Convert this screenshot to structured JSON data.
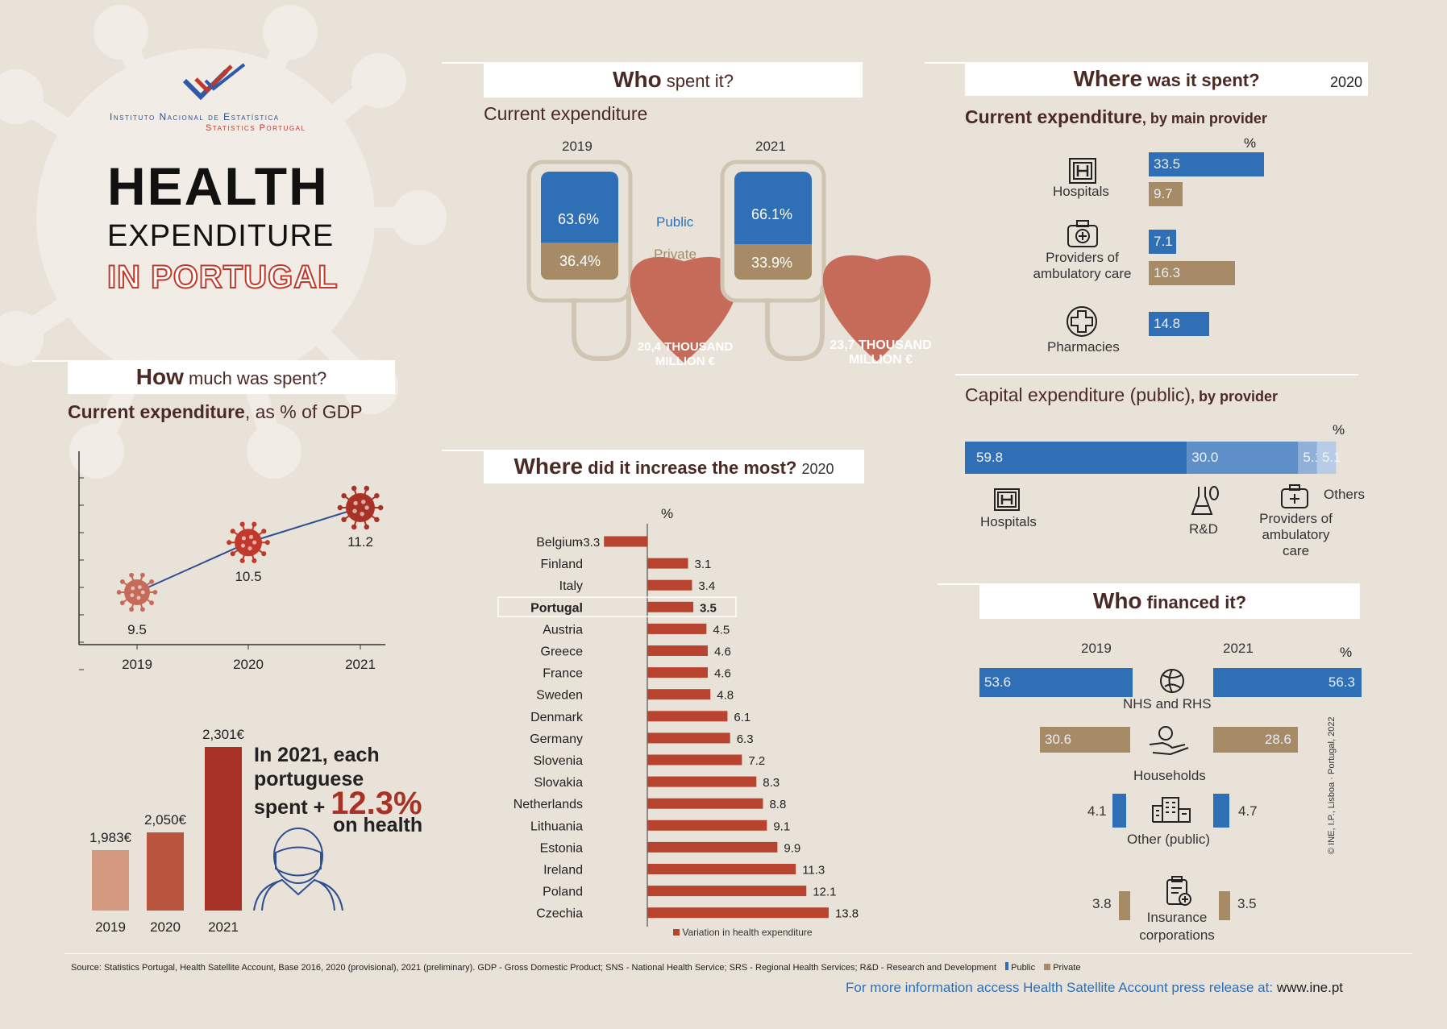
{
  "logo": {
    "name": "Instituto Nacional de Estatística",
    "subname": "Statistics Portugal"
  },
  "headline": {
    "line1": "HEALTH",
    "line2": "EXPENDITURE",
    "line3": "IN PORTUGAL"
  },
  "colors": {
    "public": "#2f6fb5",
    "private": "#a68b66",
    "accent": "#a93226",
    "title": "#4a2a24"
  },
  "how_much": {
    "title_bold": "How",
    "title_rest": "much was spent?",
    "subtitle_bold": "Current expenditure",
    "subtitle_rest": ", as % of GDP"
  },
  "per_capita": {
    "text1": "In 2021, each",
    "text2": "portuguese",
    "text3": "spent +",
    "pct": "12.3%",
    "text4": "on health"
  },
  "who_spent": {
    "title_bold": "Who",
    "title_rest": "spent it?",
    "subtitle": "Current expenditure",
    "legend_public": "Public",
    "legend_private": "Private",
    "bags": [
      {
        "year": "2019",
        "public": "63.6%",
        "private": "36.4%",
        "total_line1": "20,4 THOUSAND",
        "total_line2": "MILLION €"
      },
      {
        "year": "2021",
        "public": "66.1%",
        "private": "33.9%",
        "total_line1": "23,7 THOUSAND",
        "total_line2": "MILLION €"
      }
    ]
  },
  "where_increase": {
    "title_bold": "Where",
    "title_rest": "did it increase the most?",
    "year": "2020",
    "unit": "%",
    "legend": "Variation in health expenditure"
  },
  "where_spent": {
    "title_bold": "Where",
    "title_rest": "was it spent?",
    "year": "2020",
    "subtitle_bold": "Current expenditure",
    "subtitle_rest": ", by main provider",
    "unit": "%",
    "providers": [
      {
        "name": "Hospitals",
        "public": "33.5",
        "private": "9.7"
      },
      {
        "name1": "Providers of",
        "name2": "ambulatory care",
        "public": "7.1",
        "private": "16.3"
      },
      {
        "name": "Pharmacies",
        "private": "14.8"
      }
    ]
  },
  "capital": {
    "title_bold": "Capital expenditure (public)",
    "title_rest": ", by provider",
    "unit": "%",
    "labels": {
      "hospitals": "Hospitals",
      "rd": "R&D",
      "amb1": "Providers of",
      "amb2": "ambulatory",
      "amb3": "care",
      "others": "Others"
    }
  },
  "financed": {
    "title_bold": "Who",
    "title_rest": "financed it?",
    "year_left": "2019",
    "year_right": "2021",
    "unit": "%",
    "rows": [
      {
        "label": "NHS and RHS",
        "v2019": "53.6",
        "v2021": "56.3"
      },
      {
        "label": "Households",
        "v2019": "30.6",
        "v2021": "28.6"
      },
      {
        "label": "Other (public)",
        "v2019": "4.1",
        "v2021": "4.7"
      },
      {
        "label1": "Insurance",
        "label2": "corporations",
        "v2019": "3.8",
        "v2021": "3.5"
      }
    ]
  },
  "copyright": "© INE, I.P., Lisboa · Portugal, 2022",
  "footer": {
    "source": "Source: Statistics Portugal, Health Satellite Account, Base 2016, 2020 (provisional), 2021 (preliminary). GDP - Gross Domestic Product; SNS - National Health Service; SRS - Regional Health Services; R&D - Research and Development",
    "legend_public": "Public",
    "legend_private": "Private",
    "more_info": "For more information access Health Satellite Account press release at:",
    "url": "www.ine.pt"
  },
  "chart_data": [
    {
      "type": "line",
      "title": "Current expenditure, as % of GDP",
      "x": [
        "2019",
        "2020",
        "2021"
      ],
      "series": [
        {
          "values": [
            9.5,
            10.5,
            11.2
          ]
        }
      ]
    },
    {
      "type": "bar",
      "title": "Health expenditure per capita",
      "categories": [
        "2019",
        "2020",
        "2021"
      ],
      "values": [
        1983,
        2050,
        2301
      ],
      "labels": [
        "1,983€",
        "2,050€",
        "2,301€"
      ]
    },
    {
      "type": "bar",
      "title": "Where did it increase the most? 2020",
      "orientation": "horizontal",
      "unit": "%",
      "categories": [
        "Belgium",
        "Finland",
        "Italy",
        "Portugal",
        "Austria",
        "Greece",
        "France",
        "Sweden",
        "Denmark",
        "Germany",
        "Slovenia",
        "Slovakia",
        "Netherlands",
        "Lithuania",
        "Estonia",
        "Ireland",
        "Poland",
        "Czechia"
      ],
      "values": [
        -3.3,
        3.1,
        3.4,
        3.5,
        4.5,
        4.6,
        4.6,
        4.8,
        6.1,
        6.3,
        7.2,
        8.3,
        8.8,
        9.1,
        9.9,
        11.3,
        12.1,
        13.8
      ],
      "series_name": "Variation in health expenditure"
    },
    {
      "type": "bar",
      "title": "Capital expenditure (public), by provider",
      "categories": [
        "Hospitals",
        "R&D",
        "Providers of ambulatory care",
        "Others"
      ],
      "values": [
        59.8,
        30.0,
        5.1,
        5.1
      ]
    }
  ]
}
